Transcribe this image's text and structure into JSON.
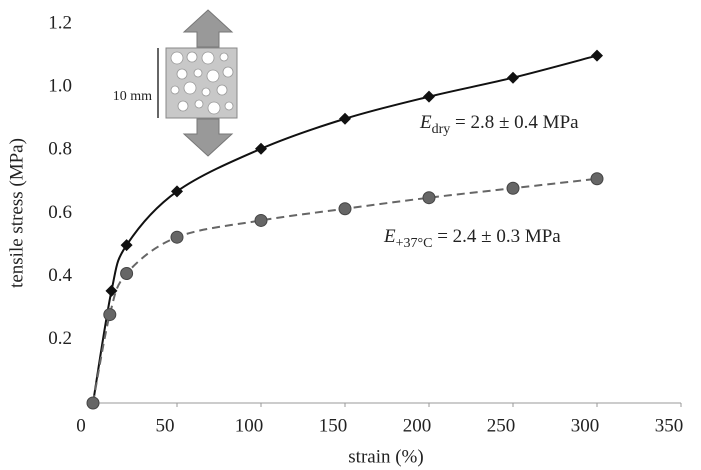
{
  "chart_data": {
    "type": "line",
    "x_label": "strain (%)",
    "y_label": "tensile stress (MPa)",
    "xlim": [
      0,
      350
    ],
    "xticks": [
      0,
      50,
      100,
      150,
      200,
      250,
      300,
      350
    ],
    "ylim": [
      0,
      1.2
    ],
    "yticks": [
      0.2,
      0.4,
      0.6,
      {
        "value": 0.8,
        "label": "0.8"
      },
      {
        "value": 1,
        "label": "1.0"
      },
      1.2
    ],
    "grid": false,
    "series": [
      {
        "color": "#111111",
        "marker": "diamond",
        "dash": false,
        "x": [
          0,
          11,
          20,
          50,
          100,
          150,
          200,
          250,
          300
        ],
        "values": [
          0,
          0.355,
          0.5,
          0.67,
          0.805,
          0.9,
          0.97,
          1.03,
          1.1
        ]
      },
      {
        "color": "#666666",
        "marker": "circle",
        "dash": true,
        "x": [
          0,
          10,
          20,
          50,
          100,
          150,
          200,
          250,
          300
        ],
        "values": [
          0,
          0.28,
          0.41,
          0.525,
          0.578,
          0.615,
          0.65,
          0.68,
          0.71
        ]
      }
    ],
    "annotations": [
      {
        "symbol": "E",
        "subscript": "dry",
        "text": " = 2.8 ± 0.4 MPa"
      },
      {
        "symbol": "E",
        "subscript": "+37°C",
        "text": " = 2.4 ± 0.3 MPa"
      }
    ],
    "inset_label": "10 mm"
  }
}
